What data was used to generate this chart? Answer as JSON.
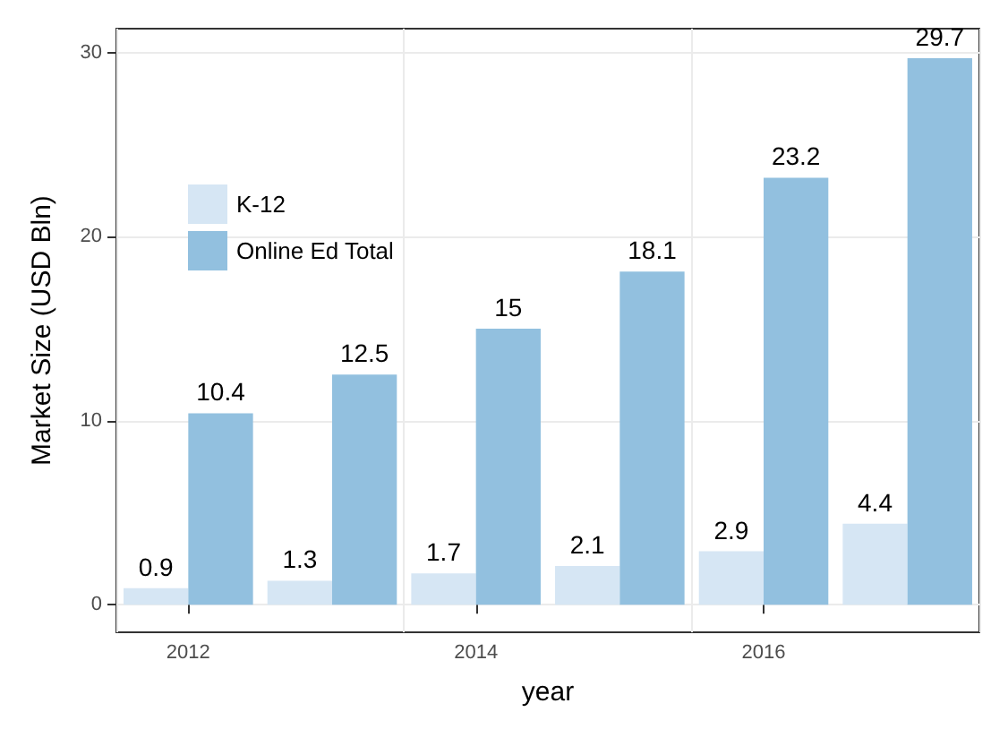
{
  "chart_data": {
    "type": "bar",
    "xlabel": "year",
    "ylabel": "Market Size (USD Bln)",
    "categories": [
      "2012",
      null,
      "2014",
      null,
      "2016",
      null
    ],
    "series": [
      {
        "name": "K-12",
        "color": "#d6e6f4",
        "values": [
          0.9,
          1.3,
          1.7,
          2.1,
          2.9,
          4.4
        ]
      },
      {
        "name": "Online Ed Total",
        "color": "#92c0df",
        "values": [
          10.4,
          12.5,
          15,
          18.1,
          23.2,
          29.7
        ]
      }
    ],
    "ylim": [
      -1.5,
      31.3
    ],
    "yticks": [
      0,
      10,
      20,
      30
    ],
    "grid": true,
    "legend": "top left",
    "data_labels": true
  }
}
